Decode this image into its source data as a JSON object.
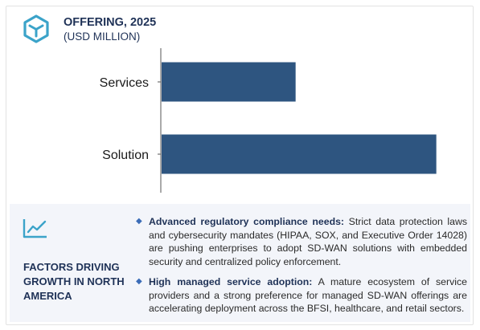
{
  "header": {
    "title": "OFFERING, 2025",
    "subtitle": "(USD MILLION)",
    "logo_icon": "hexagon-cube-icon",
    "accent_color": "#3ba3c9"
  },
  "chart_data": {
    "type": "bar",
    "orientation": "horizontal",
    "categories": [
      "Services",
      "Solution"
    ],
    "values": [
      1.0,
      2.05
    ],
    "value_units": "relative (no axis values shown)",
    "xlim": [
      0,
      2.1
    ],
    "bar_color": "#2e5580",
    "grid": false,
    "legend": "none"
  },
  "factors": {
    "title": "FACTORS DRIVING GROWTH IN NORTH AMERICA",
    "icon": "trending-line-icon",
    "bullets": [
      {
        "lead": "Advanced regulatory compliance needs:",
        "text": " Strict data protection laws and cybersecurity mandates (HIPAA, SOX, and Executive Order 14028) are pushing enterprises to adopt SD-WAN solutions with embedded security and centralized policy enforcement."
      },
      {
        "lead": "High managed service adoption:",
        "text": " A mature ecosystem of service providers and a strong preference for managed SD-WAN offerings are accelerating deployment across the BFSI, healthcare, and retail sectors."
      }
    ]
  }
}
